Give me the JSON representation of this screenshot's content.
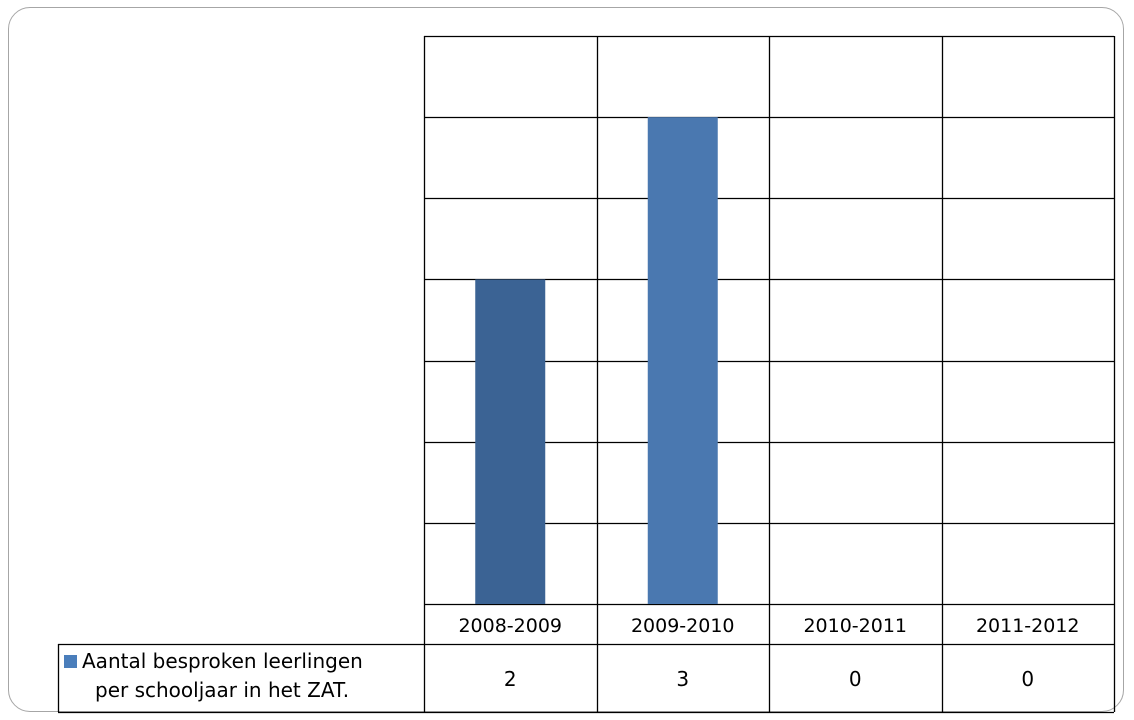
{
  "chart_data": {
    "type": "bar",
    "categories": [
      "2008-2009",
      "2009-2010",
      "2010-2011",
      "2011-2012"
    ],
    "series": [
      {
        "name": "Aantal besproken leerlingen per schooljaar in het ZAT.",
        "name_lines": [
          "Aantal besproken leerlingen",
          "per schooljaar in het ZAT."
        ],
        "values": [
          2,
          3,
          0,
          0
        ],
        "value_labels": [
          "2",
          "3",
          "0",
          "0"
        ],
        "colors": [
          "#3b6394",
          "#4a78b0"
        ]
      }
    ],
    "ylim": [
      0,
      3.5
    ],
    "gridline_step": 0.5,
    "grid": true,
    "legend": "data-table-left",
    "title": "",
    "xlabel": "",
    "ylabel": ""
  },
  "colors": {
    "legend_marker": "#4a7ebb",
    "grid": "#000000",
    "frame": "#a6a6a6"
  }
}
